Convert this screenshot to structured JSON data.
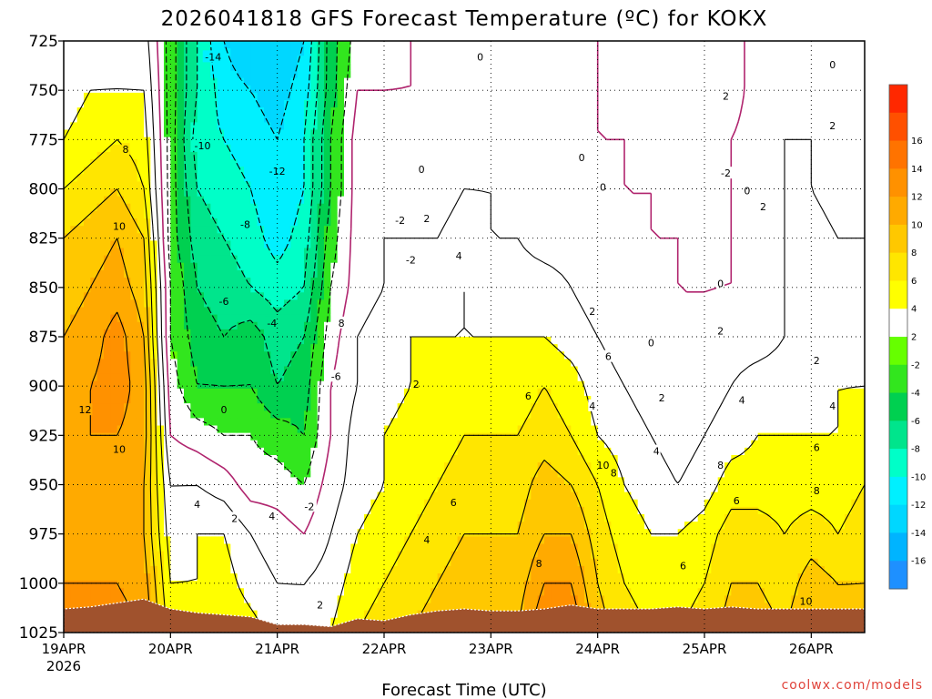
{
  "chart_data": {
    "type": "heatmap",
    "title": "2026041818 GFS Forecast Temperature (ºC) for KOKX",
    "xlabel": "Forecast Time (UTC)",
    "ylabel": "",
    "units": "ºC",
    "x_ticks": [
      "19APR",
      "20APR",
      "21APR",
      "22APR",
      "23APR",
      "24APR",
      "25APR",
      "26APR"
    ],
    "x_ticks_sub": [
      "2026",
      "",
      "",
      "",
      "",
      "",
      "",
      ""
    ],
    "xlim": [
      0,
      7.5
    ],
    "y_ticks": [
      725,
      750,
      775,
      800,
      825,
      850,
      875,
      900,
      925,
      950,
      975,
      1000,
      1025
    ],
    "ylim": [
      725,
      1025
    ],
    "colorbar": {
      "levels": [
        -18,
        -16,
        -14,
        -12,
        -10,
        -8,
        -6,
        -4,
        -2,
        2,
        4,
        6,
        8,
        10,
        12,
        14,
        16,
        18
      ],
      "labels": [
        -16,
        -14,
        -12,
        -10,
        -8,
        -6,
        -4,
        -2,
        2,
        4,
        6,
        8,
        10,
        12,
        14,
        16
      ],
      "colors": [
        "#1e90ff",
        "#00b4ff",
        "#00d7ff",
        "#00f0ff",
        "#00ffc8",
        "#00e58c",
        "#00d050",
        "#32e61e",
        "#66ff00",
        "#ffffff",
        "#ffff00",
        "#ffe600",
        "#ffc800",
        "#ffaa00",
        "#ff9100",
        "#ff7300",
        "#ff5000",
        "#ff2800"
      ]
    },
    "surface_color": "#a0522d",
    "contour_colors": {
      "positive": "#000000",
      "zero": "#b0246e",
      "negative": "#000000"
    },
    "times": [
      0,
      0.25,
      0.5,
      0.75,
      1.0,
      1.25,
      1.5,
      1.75,
      2.0,
      2.25,
      2.5,
      2.75,
      3.0,
      3.25,
      3.5,
      3.75,
      4.0,
      4.25,
      4.5,
      4.75,
      5.0,
      5.25,
      5.5,
      5.75,
      6.0,
      6.25,
      6.5,
      6.75,
      7.0,
      7.25,
      7.5
    ],
    "surface_pressure": [
      1013,
      1012,
      1010,
      1008,
      1013,
      1015,
      1016,
      1017,
      1021,
      1021,
      1022,
      1018,
      1019,
      1016,
      1014,
      1013,
      1014,
      1014,
      1013,
      1011,
      1013,
      1013,
      1013,
      1012,
      1013,
      1012,
      1013,
      1013,
      1013,
      1013,
      1013
    ],
    "levels": [
      725,
      750,
      775,
      800,
      825,
      850,
      875,
      900,
      925,
      950,
      975,
      1000,
      1025
    ],
    "temperature": [
      [
        2,
        3,
        3,
        3,
        -3,
        -8,
        -12,
        -14,
        -14,
        -12,
        -5,
        -1,
        -1,
        0,
        0,
        1,
        1,
        0,
        0,
        0,
        0,
        -1,
        -1,
        -1,
        -1,
        -1,
        1,
        1,
        0,
        0,
        0
      ],
      [
        3,
        4,
        4,
        4,
        -3,
        -8,
        -11,
        -12,
        -13,
        -11,
        -5,
        0,
        0,
        0,
        0,
        1,
        1,
        0,
        0,
        0,
        0,
        -1,
        -1,
        -1,
        -2,
        -1,
        1,
        1,
        1,
        0,
        0
      ],
      [
        4,
        5,
        6,
        5,
        -3,
        -9,
        -10,
        -11,
        -12,
        -10,
        -4,
        1,
        1,
        1,
        1,
        1,
        1,
        1,
        0,
        0,
        0,
        0,
        -1,
        -1,
        -2,
        0,
        1,
        2,
        2,
        1,
        0
      ],
      [
        6,
        7,
        8,
        6,
        -3,
        -8,
        -9,
        -10,
        -12,
        -10,
        -4,
        1,
        1,
        1,
        1,
        2,
        2,
        1,
        1,
        0,
        0,
        0,
        0,
        -1,
        -1,
        0,
        1,
        2,
        2,
        1,
        1
      ],
      [
        8,
        9,
        10,
        8,
        -3,
        -7,
        -8,
        -9,
        -11,
        -9,
        -3,
        1,
        2,
        2,
        2,
        3,
        2,
        2,
        1,
        1,
        0,
        0,
        0,
        0,
        -1,
        0,
        1,
        2,
        3,
        2,
        2
      ],
      [
        9,
        10,
        11,
        9,
        -2,
        -6,
        -7,
        -8,
        -9,
        -8,
        -2,
        1,
        2,
        3,
        3,
        4,
        3,
        3,
        3,
        2,
        1,
        1,
        0,
        0,
        0,
        0,
        1,
        2,
        3,
        3,
        3
      ],
      [
        10,
        11,
        13,
        10,
        -2,
        -5,
        -6,
        -5,
        -7,
        -6,
        -1,
        2,
        3,
        4,
        4,
        4,
        4,
        4,
        4,
        3,
        2,
        1,
        0,
        0,
        0,
        1,
        1,
        2,
        3,
        3,
        3
      ],
      [
        11,
        12,
        13,
        11,
        -1,
        -4,
        -4,
        -4,
        -6,
        -5,
        0,
        2,
        3,
        4,
        5,
        5,
        5,
        5,
        6,
        5,
        3,
        2,
        1,
        0,
        1,
        2,
        3,
        3,
        3,
        4,
        4
      ],
      [
        11,
        12,
        12,
        11,
        0,
        -1,
        -2,
        -2,
        -3,
        -4,
        0,
        3,
        4,
        5,
        5,
        6,
        6,
        6,
        7,
        6,
        4,
        3,
        2,
        1,
        2,
        3,
        4,
        4,
        4,
        4,
        5
      ],
      [
        10,
        11,
        11,
        10,
        2,
        2,
        1,
        -1,
        -1,
        -2,
        1,
        3,
        4,
        5,
        6,
        7,
        7,
        7,
        9,
        8,
        6,
        4,
        3,
        2,
        3,
        5,
        5,
        5,
        5,
        5,
        6
      ],
      [
        11,
        11,
        11,
        10,
        3,
        4,
        4,
        2,
        1,
        0,
        2,
        4,
        5,
        6,
        7,
        8,
        8,
        8,
        10,
        10,
        7,
        5,
        4,
        4,
        5,
        7,
        7,
        6,
        7,
        6,
        7
      ],
      [
        12,
        12,
        12,
        11,
        4,
        4,
        5,
        3,
        2,
        2,
        3,
        5,
        6,
        7,
        8,
        9,
        9,
        9,
        12,
        12,
        8,
        6,
        5,
        5,
        6,
        8,
        8,
        7,
        9,
        8,
        8
      ],
      [
        13,
        13,
        13,
        12,
        5,
        5,
        6,
        5,
        3,
        3,
        4,
        6,
        7,
        8,
        9,
        10,
        10,
        10,
        14,
        14,
        9,
        7,
        6,
        6,
        7,
        9,
        9,
        8,
        10,
        9,
        9
      ]
    ],
    "contour_labels": [
      {
        "t": 0.58,
        "p": 780,
        "text": "8"
      },
      {
        "t": 0.52,
        "p": 819,
        "text": "10"
      },
      {
        "t": 0.2,
        "p": 912,
        "text": "12"
      },
      {
        "t": 0.52,
        "p": 932,
        "text": "10"
      },
      {
        "t": 1.4,
        "p": 733,
        "text": "-14"
      },
      {
        "t": 1.3,
        "p": 778,
        "text": "-10"
      },
      {
        "t": 2.0,
        "p": 791,
        "text": "-12"
      },
      {
        "t": 1.7,
        "p": 818,
        "text": "-8"
      },
      {
        "t": 1.5,
        "p": 857,
        "text": "-6"
      },
      {
        "t": 1.95,
        "p": 868,
        "text": "-4"
      },
      {
        "t": 2.6,
        "p": 868,
        "text": "8"
      },
      {
        "t": 2.55,
        "p": 895,
        "text": "-6"
      },
      {
        "t": 2.3,
        "p": 961,
        "text": "-2"
      },
      {
        "t": 1.5,
        "p": 912,
        "text": "0"
      },
      {
        "t": 1.25,
        "p": 960,
        "text": "4"
      },
      {
        "t": 1.6,
        "p": 967,
        "text": "2"
      },
      {
        "t": 1.95,
        "p": 966,
        "text": "4"
      },
      {
        "t": 2.4,
        "p": 1011,
        "text": "2"
      },
      {
        "t": 3.15,
        "p": 816,
        "text": "-2"
      },
      {
        "t": 3.25,
        "p": 836,
        "text": "-2"
      },
      {
        "t": 3.35,
        "p": 790,
        "text": "0"
      },
      {
        "t": 3.4,
        "p": 815,
        "text": "2"
      },
      {
        "t": 3.7,
        "p": 834,
        "text": "4"
      },
      {
        "t": 3.3,
        "p": 899,
        "text": "2"
      },
      {
        "t": 3.9,
        "p": 733,
        "text": "0"
      },
      {
        "t": 4.35,
        "p": 905,
        "text": "6"
      },
      {
        "t": 3.65,
        "p": 959,
        "text": "6"
      },
      {
        "t": 3.4,
        "p": 978,
        "text": "4"
      },
      {
        "t": 4.45,
        "p": 990,
        "text": "8"
      },
      {
        "t": 4.85,
        "p": 784,
        "text": "0"
      },
      {
        "t": 5.05,
        "p": 799,
        "text": "0"
      },
      {
        "t": 4.95,
        "p": 862,
        "text": "2"
      },
      {
        "t": 4.95,
        "p": 910,
        "text": "4"
      },
      {
        "t": 5.1,
        "p": 885,
        "text": "6"
      },
      {
        "t": 5.05,
        "p": 940,
        "text": "10"
      },
      {
        "t": 5.15,
        "p": 944,
        "text": "8"
      },
      {
        "t": 5.5,
        "p": 878,
        "text": "0"
      },
      {
        "t": 5.6,
        "p": 906,
        "text": "2"
      },
      {
        "t": 5.55,
        "p": 933,
        "text": "4"
      },
      {
        "t": 5.8,
        "p": 991,
        "text": "6"
      },
      {
        "t": 6.2,
        "p": 753,
        "text": "2"
      },
      {
        "t": 6.2,
        "p": 792,
        "text": "-2"
      },
      {
        "t": 6.4,
        "p": 801,
        "text": "0"
      },
      {
        "t": 6.55,
        "p": 809,
        "text": "2"
      },
      {
        "t": 6.15,
        "p": 848,
        "text": "0"
      },
      {
        "t": 6.15,
        "p": 872,
        "text": "2"
      },
      {
        "t": 6.35,
        "p": 907,
        "text": "4"
      },
      {
        "t": 6.15,
        "p": 940,
        "text": "8"
      },
      {
        "t": 6.3,
        "p": 958,
        "text": "6"
      },
      {
        "t": 7.2,
        "p": 737,
        "text": "0"
      },
      {
        "t": 7.2,
        "p": 768,
        "text": "2"
      },
      {
        "t": 7.05,
        "p": 887,
        "text": "2"
      },
      {
        "t": 7.2,
        "p": 910,
        "text": "4"
      },
      {
        "t": 7.05,
        "p": 931,
        "text": "6"
      },
      {
        "t": 7.05,
        "p": 953,
        "text": "8"
      },
      {
        "t": 6.95,
        "p": 1009,
        "text": "10"
      }
    ]
  },
  "credit": "coolwx.com/models"
}
